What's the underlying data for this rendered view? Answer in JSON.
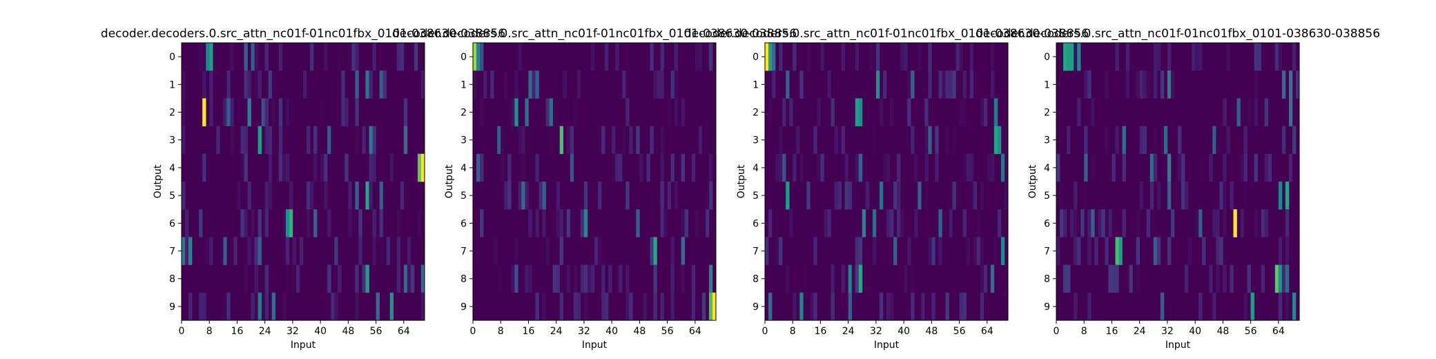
{
  "chart_data": [
    {
      "type": "heatmap",
      "title": "decoder.decoders.0.src_attn_nc01f-01nc01fbx_0101-038630-038856",
      "xlabel": "Input",
      "ylabel": "Output",
      "xticks": [
        "0",
        "8",
        "16",
        "24",
        "32",
        "40",
        "48",
        "56",
        "64"
      ],
      "yticks": [
        "0",
        "1",
        "2",
        "3",
        "4",
        "5",
        "6",
        "7",
        "8",
        "9"
      ],
      "xlim": [
        0,
        70
      ],
      "rows": 10,
      "cols": 70,
      "hotspots": [
        {
          "row": 0,
          "col": 8,
          "value": 0.55
        },
        {
          "row": 0,
          "col": 7,
          "value": 0.45
        },
        {
          "row": 0,
          "col": 18,
          "value": 0.3
        },
        {
          "row": 0,
          "col": 20,
          "value": 0.3
        },
        {
          "row": 1,
          "col": 53,
          "value": 0.4
        },
        {
          "row": 1,
          "col": 50,
          "value": 0.3
        },
        {
          "row": 1,
          "col": 57,
          "value": 0.3
        },
        {
          "row": 2,
          "col": 6,
          "value": 1.0
        },
        {
          "row": 2,
          "col": 19,
          "value": 0.45
        },
        {
          "row": 2,
          "col": 13,
          "value": 0.3
        },
        {
          "row": 2,
          "col": 23,
          "value": 0.25
        },
        {
          "row": 3,
          "col": 22,
          "value": 0.55
        },
        {
          "row": 3,
          "col": 54,
          "value": 0.4
        },
        {
          "row": 3,
          "col": 64,
          "value": 0.35
        },
        {
          "row": 3,
          "col": 42,
          "value": 0.3
        },
        {
          "row": 4,
          "col": 69,
          "value": 1.0
        },
        {
          "row": 4,
          "col": 68,
          "value": 0.75
        },
        {
          "row": 5,
          "col": 53,
          "value": 0.6
        },
        {
          "row": 5,
          "col": 50,
          "value": 0.3
        },
        {
          "row": 5,
          "col": 57,
          "value": 0.3
        },
        {
          "row": 6,
          "col": 31,
          "value": 0.65
        },
        {
          "row": 6,
          "col": 30,
          "value": 0.5
        },
        {
          "row": 6,
          "col": 38,
          "value": 0.3
        },
        {
          "row": 7,
          "col": 2,
          "value": 0.45
        },
        {
          "row": 7,
          "col": 0,
          "value": 0.4
        },
        {
          "row": 7,
          "col": 12,
          "value": 0.3
        },
        {
          "row": 7,
          "col": 22,
          "value": 0.3
        },
        {
          "row": 8,
          "col": 53,
          "value": 0.55
        },
        {
          "row": 8,
          "col": 64,
          "value": 0.35
        },
        {
          "row": 8,
          "col": 69,
          "value": 0.35
        },
        {
          "row": 9,
          "col": 60,
          "value": 0.5
        },
        {
          "row": 9,
          "col": 22,
          "value": 0.4
        },
        {
          "row": 9,
          "col": 26,
          "value": 0.35
        },
        {
          "row": 9,
          "col": 56,
          "value": 0.35
        }
      ]
    },
    {
      "type": "heatmap",
      "title": "decoder.decoders.0.src_attn_nc01f-01nc01fbx_0101-038630-038856",
      "xlabel": "Input",
      "ylabel": "Output",
      "xticks": [
        "0",
        "8",
        "16",
        "24",
        "32",
        "40",
        "48",
        "56",
        "64"
      ],
      "yticks": [
        "0",
        "1",
        "2",
        "3",
        "4",
        "5",
        "6",
        "7",
        "8",
        "9"
      ],
      "xlim": [
        0,
        70
      ],
      "rows": 10,
      "cols": 70,
      "hotspots": [
        {
          "row": 0,
          "col": 0,
          "value": 0.85
        },
        {
          "row": 0,
          "col": 1,
          "value": 0.45
        },
        {
          "row": 0,
          "col": 2,
          "value": 0.25
        },
        {
          "row": 1,
          "col": 16,
          "value": 0.35
        },
        {
          "row": 1,
          "col": 18,
          "value": 0.3
        },
        {
          "row": 2,
          "col": 12,
          "value": 0.5
        },
        {
          "row": 2,
          "col": 15,
          "value": 0.35
        },
        {
          "row": 2,
          "col": 22,
          "value": 0.35
        },
        {
          "row": 3,
          "col": 25,
          "value": 0.7
        },
        {
          "row": 3,
          "col": 7,
          "value": 0.3
        },
        {
          "row": 4,
          "col": 1,
          "value": 0.3
        },
        {
          "row": 4,
          "col": 28,
          "value": 0.25
        },
        {
          "row": 5,
          "col": 14,
          "value": 0.35
        },
        {
          "row": 5,
          "col": 20,
          "value": 0.3
        },
        {
          "row": 6,
          "col": 32,
          "value": 0.45
        },
        {
          "row": 6,
          "col": 47,
          "value": 0.3
        },
        {
          "row": 7,
          "col": 52,
          "value": 0.6
        },
        {
          "row": 7,
          "col": 60,
          "value": 0.35
        },
        {
          "row": 8,
          "col": 68,
          "value": 0.45
        },
        {
          "row": 8,
          "col": 12,
          "value": 0.25
        },
        {
          "row": 9,
          "col": 69,
          "value": 1.0
        },
        {
          "row": 9,
          "col": 68,
          "value": 0.7
        }
      ]
    },
    {
      "type": "heatmap",
      "title": "decoder.decoders.0.src_attn_nc01f-01nc01fbx_0101-038630-038856",
      "xlabel": "Input",
      "ylabel": "Output",
      "xticks": [
        "0",
        "8",
        "16",
        "24",
        "32",
        "40",
        "48",
        "56",
        "64"
      ],
      "yticks": [
        "0",
        "1",
        "2",
        "3",
        "4",
        "5",
        "6",
        "7",
        "8",
        "9"
      ],
      "xlim": [
        0,
        70
      ],
      "rows": 10,
      "cols": 70,
      "hotspots": [
        {
          "row": 0,
          "col": 0,
          "value": 1.0
        },
        {
          "row": 0,
          "col": 1,
          "value": 0.55
        },
        {
          "row": 0,
          "col": 2,
          "value": 0.35
        },
        {
          "row": 1,
          "col": 32,
          "value": 0.5
        },
        {
          "row": 1,
          "col": 6,
          "value": 0.3
        },
        {
          "row": 1,
          "col": 42,
          "value": 0.3
        },
        {
          "row": 2,
          "col": 26,
          "value": 0.55
        },
        {
          "row": 2,
          "col": 27,
          "value": 0.5
        },
        {
          "row": 2,
          "col": 66,
          "value": 0.4
        },
        {
          "row": 3,
          "col": 66,
          "value": 0.6
        },
        {
          "row": 3,
          "col": 67,
          "value": 0.5
        },
        {
          "row": 3,
          "col": 47,
          "value": 0.3
        },
        {
          "row": 4,
          "col": 27,
          "value": 0.3
        },
        {
          "row": 4,
          "col": 68,
          "value": 0.35
        },
        {
          "row": 4,
          "col": 5,
          "value": 0.25
        },
        {
          "row": 5,
          "col": 6,
          "value": 0.55
        },
        {
          "row": 5,
          "col": 33,
          "value": 0.35
        },
        {
          "row": 5,
          "col": 44,
          "value": 0.3
        },
        {
          "row": 6,
          "col": 28,
          "value": 0.45
        },
        {
          "row": 6,
          "col": 31,
          "value": 0.35
        },
        {
          "row": 6,
          "col": 50,
          "value": 0.3
        },
        {
          "row": 7,
          "col": 68,
          "value": 0.45
        },
        {
          "row": 7,
          "col": 37,
          "value": 0.3
        },
        {
          "row": 8,
          "col": 27,
          "value": 0.6
        },
        {
          "row": 8,
          "col": 24,
          "value": 0.45
        },
        {
          "row": 8,
          "col": 65,
          "value": 0.35
        },
        {
          "row": 9,
          "col": 10,
          "value": 0.45
        },
        {
          "row": 9,
          "col": 1,
          "value": 0.35
        },
        {
          "row": 9,
          "col": 24,
          "value": 0.3
        }
      ]
    },
    {
      "type": "heatmap",
      "title": "decoder.decoders.0.src_attn_nc01f-01nc01fbx_0101-038630-038856",
      "xlabel": "Input",
      "ylabel": "Output",
      "xticks": [
        "0",
        "8",
        "16",
        "24",
        "32",
        "40",
        "48",
        "56",
        "64"
      ],
      "yticks": [
        "0",
        "1",
        "2",
        "3",
        "4",
        "5",
        "6",
        "7",
        "8",
        "9"
      ],
      "xlim": [
        0,
        70
      ],
      "rows": 10,
      "cols": 70,
      "hotspots": [
        {
          "row": 0,
          "col": 2,
          "value": 0.6
        },
        {
          "row": 0,
          "col": 3,
          "value": 0.55
        },
        {
          "row": 0,
          "col": 4,
          "value": 0.55
        },
        {
          "row": 0,
          "col": 6,
          "value": 0.45
        },
        {
          "row": 1,
          "col": 32,
          "value": 0.45
        },
        {
          "row": 1,
          "col": 67,
          "value": 0.4
        },
        {
          "row": 1,
          "col": 65,
          "value": 0.35
        },
        {
          "row": 2,
          "col": 67,
          "value": 0.4
        },
        {
          "row": 2,
          "col": 52,
          "value": 0.3
        },
        {
          "row": 3,
          "col": 19,
          "value": 0.35
        },
        {
          "row": 3,
          "col": 31,
          "value": 0.35
        },
        {
          "row": 3,
          "col": 45,
          "value": 0.3
        },
        {
          "row": 4,
          "col": 32,
          "value": 0.45
        },
        {
          "row": 4,
          "col": 27,
          "value": 0.35
        },
        {
          "row": 4,
          "col": 8,
          "value": 0.3
        },
        {
          "row": 5,
          "col": 66,
          "value": 0.6
        },
        {
          "row": 5,
          "col": 64,
          "value": 0.45
        },
        {
          "row": 5,
          "col": 32,
          "value": 0.3
        },
        {
          "row": 6,
          "col": 51,
          "value": 1.0
        },
        {
          "row": 6,
          "col": 41,
          "value": 0.3
        },
        {
          "row": 6,
          "col": 10,
          "value": 0.3
        },
        {
          "row": 7,
          "col": 17,
          "value": 0.7
        },
        {
          "row": 7,
          "col": 18,
          "value": 0.55
        },
        {
          "row": 7,
          "col": 28,
          "value": 0.3
        },
        {
          "row": 8,
          "col": 63,
          "value": 0.75
        },
        {
          "row": 8,
          "col": 64,
          "value": 0.5
        },
        {
          "row": 8,
          "col": 66,
          "value": 0.35
        },
        {
          "row": 9,
          "col": 56,
          "value": 0.55
        },
        {
          "row": 9,
          "col": 68,
          "value": 0.45
        },
        {
          "row": 9,
          "col": 30,
          "value": 0.3
        }
      ]
    }
  ]
}
